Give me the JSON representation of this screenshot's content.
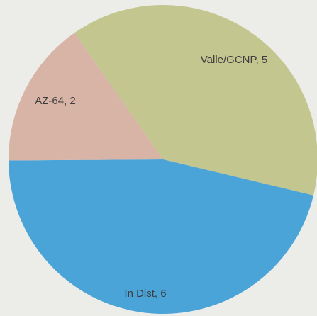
{
  "chart_data": {
    "type": "pie",
    "categories": [
      "Valle/GCNP",
      "In Dist",
      "AZ-64"
    ],
    "values": [
      5,
      6,
      2
    ],
    "value_labels": [
      "Valle/GCNP, 5",
      "In Dist, 6",
      "AZ-64, 2"
    ],
    "colors": [
      "#c4c690",
      "#4ba4d8",
      "#d8b4a6"
    ]
  }
}
